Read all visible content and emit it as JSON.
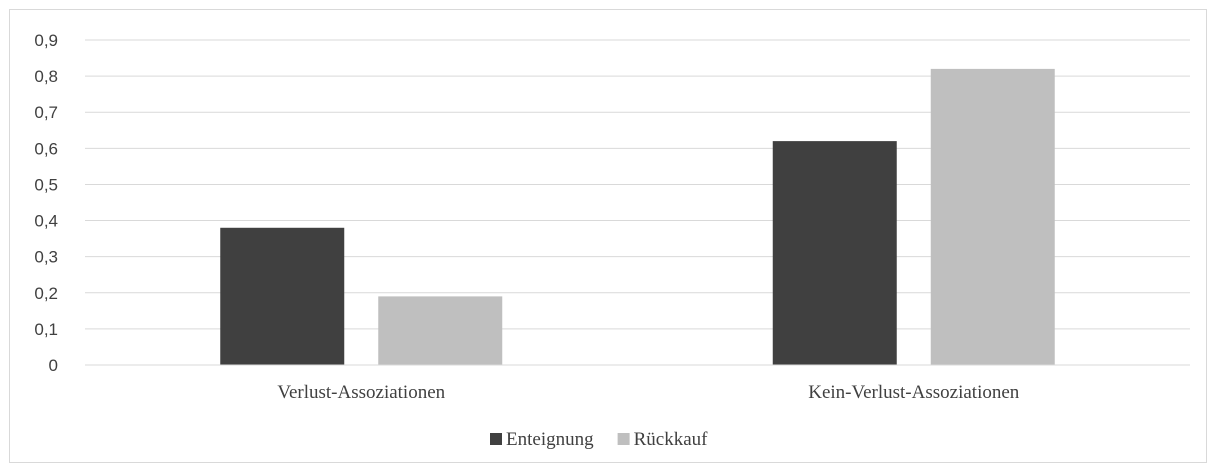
{
  "chart_data": {
    "type": "bar",
    "categories": [
      "Verlust-Assoziationen",
      "Kein-Verlust-Assoziationen"
    ],
    "series": [
      {
        "name": "Enteignung",
        "values": [
          0.38,
          0.62
        ],
        "color": "#404040"
      },
      {
        "name": "Rückkauf",
        "values": [
          0.19,
          0.82
        ],
        "color": "#bfbfbf"
      }
    ],
    "ylim": [
      0,
      0.9
    ],
    "yticks": [
      "0",
      "0,1",
      "0,2",
      "0,3",
      "0,4",
      "0,5",
      "0,6",
      "0,7",
      "0,8",
      "0,9"
    ],
    "grid": true,
    "legend_position": "bottom",
    "title": "",
    "xlabel": "",
    "ylabel": ""
  }
}
